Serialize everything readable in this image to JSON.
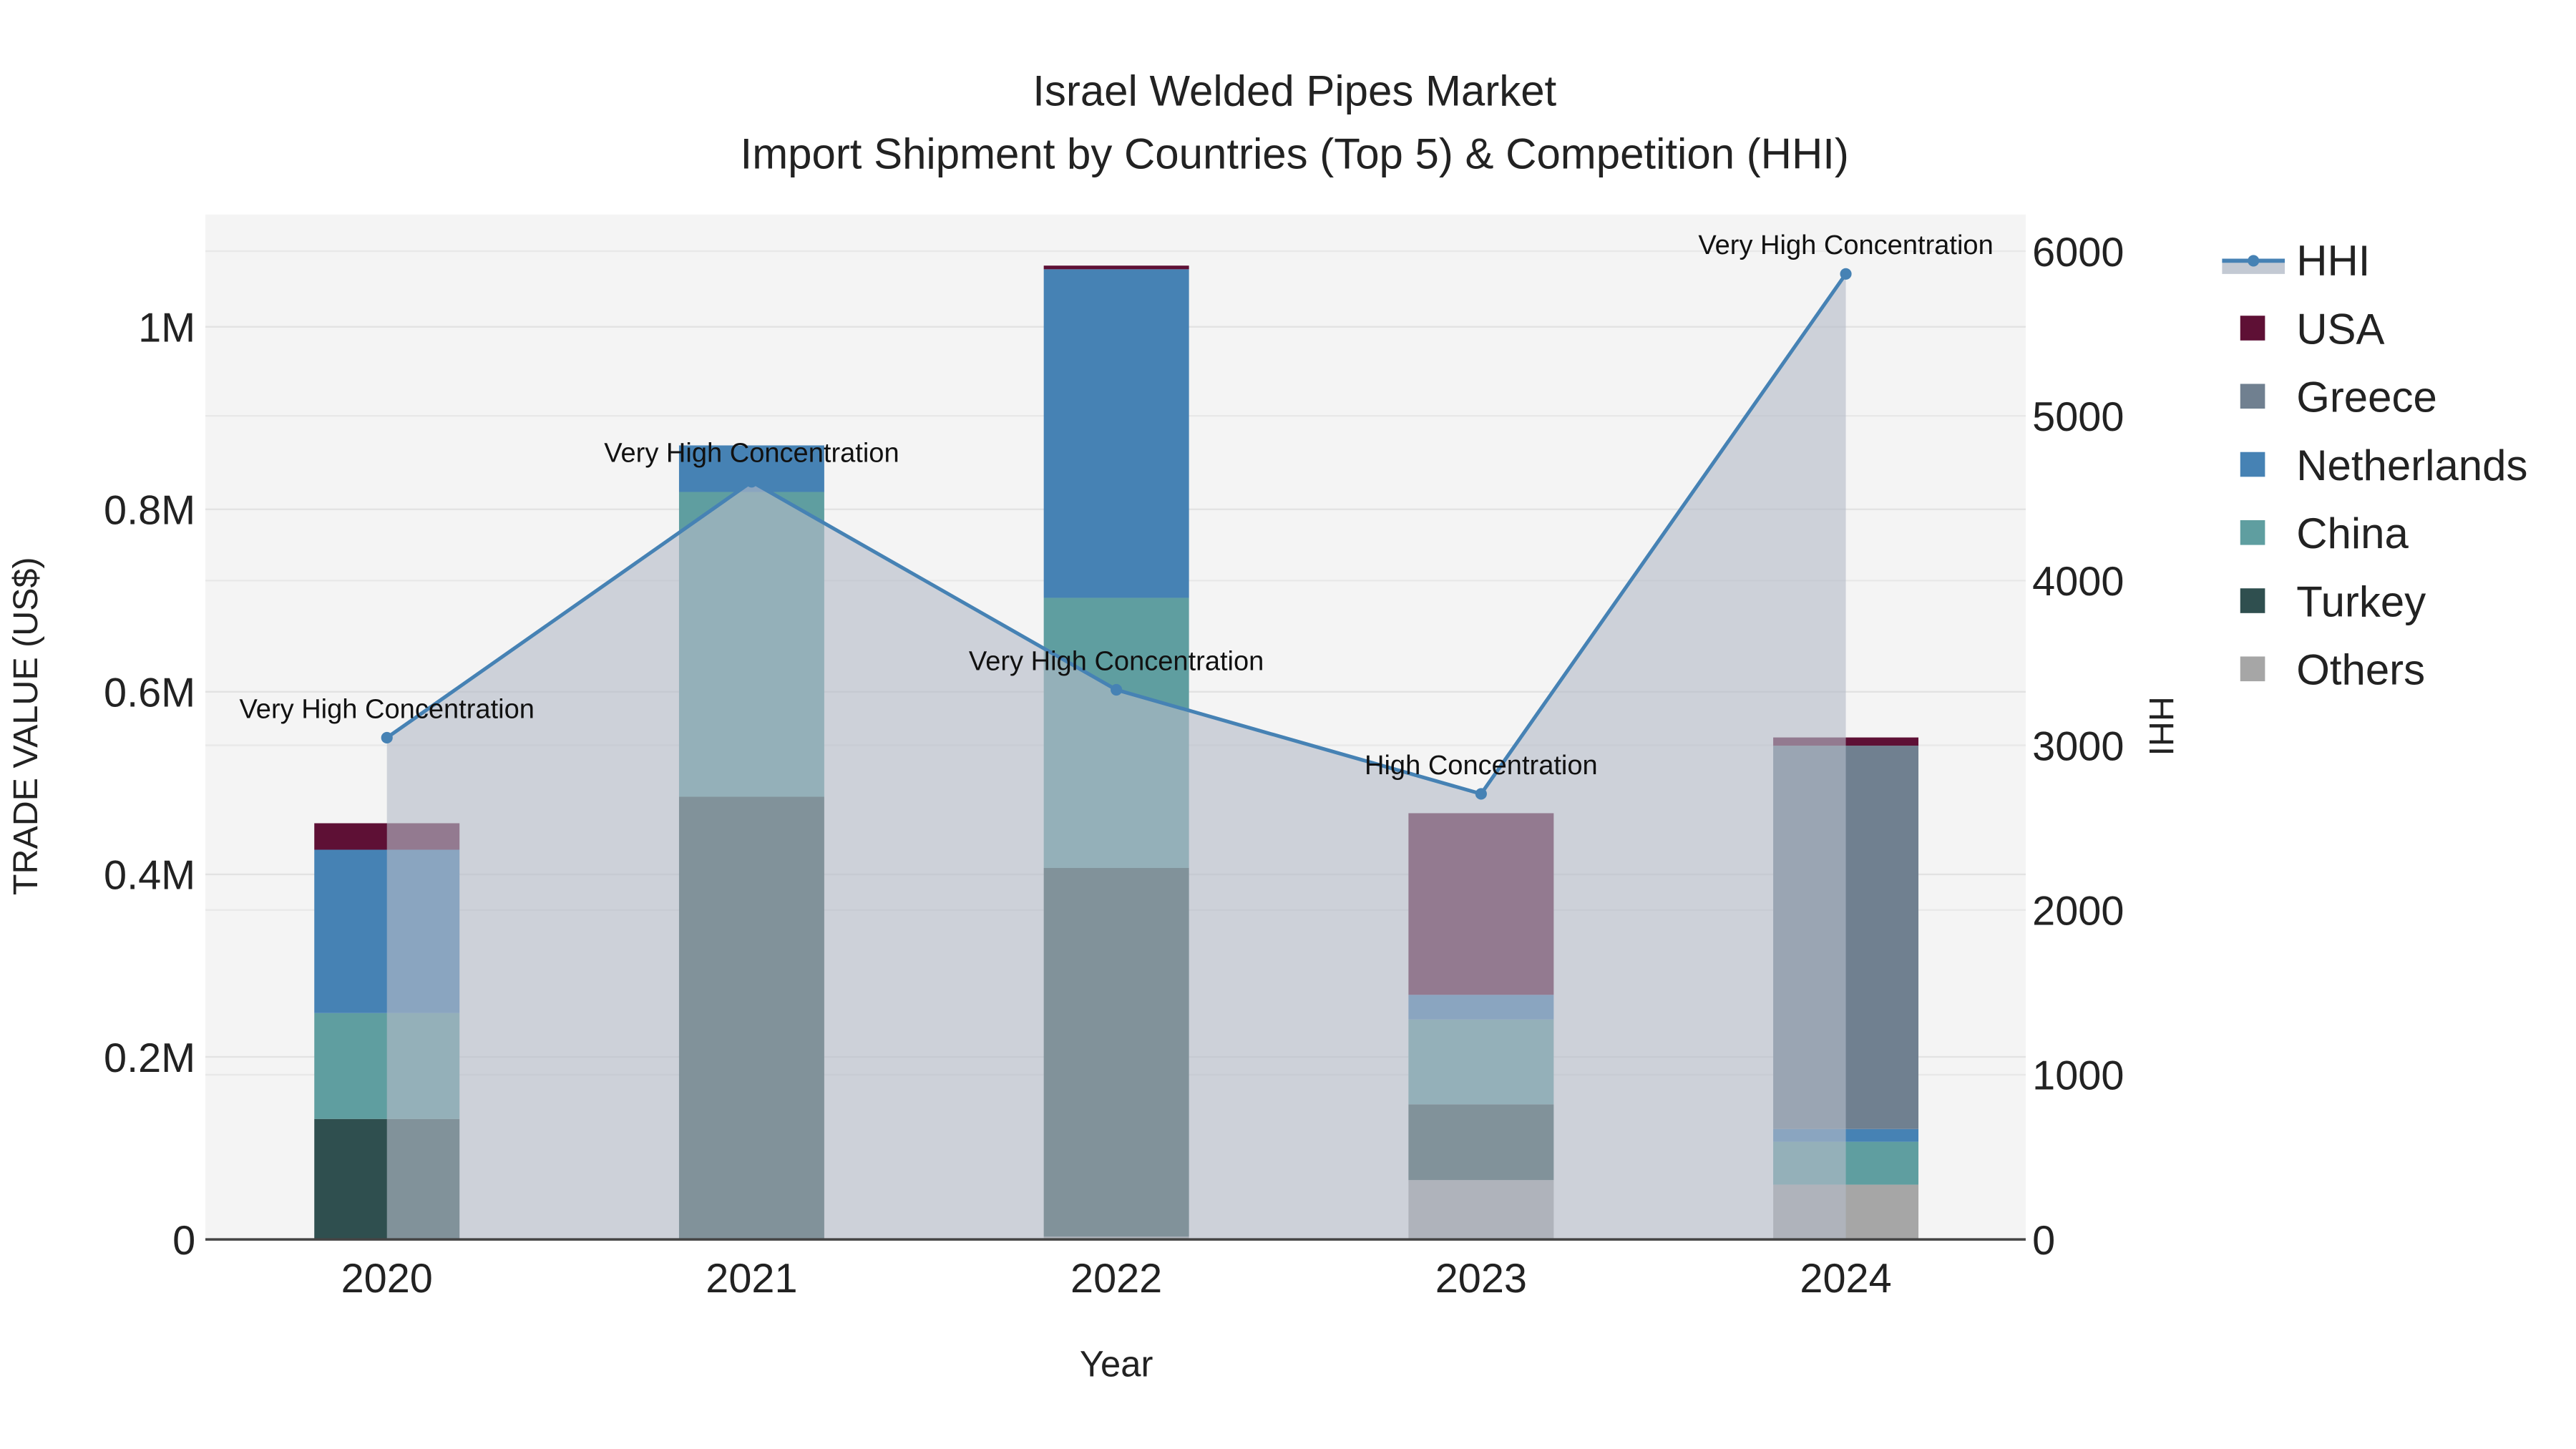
{
  "chart_data": {
    "type": "bar",
    "stacked": true,
    "title": "Israel Welded Pipes Market",
    "subtitle": "Import Shipment by Countries (Top 5) & Competition (HHI)",
    "xlabel": "Year",
    "ylabel": "TRADE VALUE (US$)",
    "y2label": "HHI",
    "categories": [
      "2020",
      "2021",
      "2022",
      "2023",
      "2024"
    ],
    "ylim": [
      0,
      1120000
    ],
    "y2lim": [
      0,
      6220
    ],
    "yticks": [
      {
        "v": 0,
        "label": "0"
      },
      {
        "v": 200000,
        "label": "0.2M"
      },
      {
        "v": 400000,
        "label": "0.4M"
      },
      {
        "v": 600000,
        "label": "0.6M"
      },
      {
        "v": 800000,
        "label": "0.8M"
      },
      {
        "v": 1000000,
        "label": "1M"
      }
    ],
    "y2ticks": [
      {
        "v": 0,
        "label": "0"
      },
      {
        "v": 1000,
        "label": "1000"
      },
      {
        "v": 2000,
        "label": "2000"
      },
      {
        "v": 3000,
        "label": "3000"
      },
      {
        "v": 4000,
        "label": "4000"
      },
      {
        "v": 5000,
        "label": "5000"
      },
      {
        "v": 6000,
        "label": "6000"
      }
    ],
    "series": [
      {
        "name": "Others",
        "color": "#a6a6a6",
        "values": [
          0,
          0,
          3000,
          65000,
          60000
        ]
      },
      {
        "name": "Turkey",
        "color": "#2f4f4f",
        "values": [
          132000,
          485000,
          404000,
          83000,
          0
        ]
      },
      {
        "name": "China",
        "color": "#5f9ea0",
        "values": [
          116000,
          334000,
          296000,
          93000,
          47000
        ]
      },
      {
        "name": "Netherlands",
        "color": "#4682b4",
        "values": [
          179000,
          51000,
          360000,
          27000,
          14000
        ]
      },
      {
        "name": "Greece",
        "color": "#708090",
        "values": [
          0,
          0,
          0,
          0,
          420000
        ]
      },
      {
        "name": "USA",
        "color": "#5e1035",
        "values": [
          29000,
          0,
          4000,
          199000,
          9000
        ]
      }
    ],
    "hhi": {
      "name": "HHI",
      "color": "#4682b4",
      "values": [
        3046,
        4600,
        3337,
        2705,
        5862
      ],
      "labels": [
        "Very High Concentration",
        "Very High Concentration",
        "Very High Concentration",
        "High Concentration",
        "Very High Concentration"
      ]
    },
    "legend_order": [
      "HHI",
      "USA",
      "Greece",
      "Netherlands",
      "China",
      "Turkey",
      "Others"
    ],
    "legend_position": "right",
    "grid": true
  }
}
